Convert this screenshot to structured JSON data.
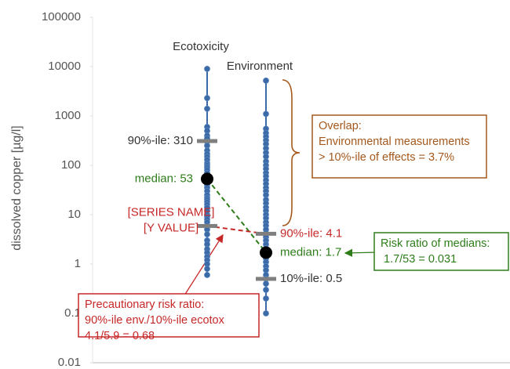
{
  "chart_data": {
    "type": "strip",
    "y_label": "dissolved copper  [µg/l]",
    "log_y": true,
    "ylim": [
      0.01,
      100000
    ],
    "yticks": [
      0.01,
      0.1,
      1,
      10,
      100,
      1000,
      10000,
      100000
    ],
    "series": [
      {
        "name": "Ecotoxicity",
        "color": "#3b6aa6",
        "values": [
          9000,
          2300,
          1400,
          600,
          500,
          400,
          350,
          300,
          250,
          200,
          170,
          150,
          130,
          110,
          100,
          90,
          80,
          70,
          60,
          55,
          50,
          45,
          40,
          35,
          30,
          25,
          22,
          20,
          18,
          16,
          14,
          12,
          10,
          9,
          8,
          7,
          6,
          5,
          4,
          3,
          2.5,
          2,
          1.7,
          1.4,
          1.2,
          1,
          0.8,
          0.6
        ],
        "percentiles": [
          {
            "value": 310,
            "label": "90%-ile: 310",
            "label_color": "#333333"
          },
          {
            "value": 53,
            "label": "median: 53",
            "label_color": "#2e7d1a"
          },
          {
            "value": 5.9,
            "label": [
              "[SERIES NAME]",
              "[Y VALUE]"
            ],
            "label_color": "#c62828"
          }
        ]
      },
      {
        "name": "Environment",
        "color": "#3b6aa6",
        "values": [
          5200,
          1100,
          550,
          450,
          380,
          320,
          270,
          220,
          180,
          150,
          120,
          100,
          85,
          70,
          60,
          50,
          42,
          35,
          30,
          25,
          20,
          17,
          14,
          12,
          10,
          8.5,
          7,
          6,
          5,
          4.2,
          3.5,
          3,
          2.5,
          2.1,
          1.8,
          1.5,
          1.3,
          1.1,
          0.9,
          0.75,
          0.6,
          0.5,
          0.4,
          0.3,
          0.2,
          0.1
        ],
        "percentiles": [
          {
            "value": 4.1,
            "label": "90%-ile: 4.1",
            "label_color": "#c62828"
          },
          {
            "value": 1.7,
            "label": "median: 1.7",
            "label_color": "#2e7d1a"
          },
          {
            "value": 0.5,
            "label": "10%-ile: 0.5",
            "label_color": "#333333"
          }
        ]
      }
    ],
    "annotations": [
      {
        "lines": [
          "Overlap:",
          "Environmental measurements",
          "> 10%-ile of effects = 3.7%"
        ],
        "color": "#a4581c"
      },
      {
        "lines": [
          "Risk ratio of medians:",
          "1.7/53 = 0.031"
        ],
        "color": "#2e7d1a"
      },
      {
        "lines": [
          "Precautionary risk ratio:",
          "90%-ile env./10%-ile ecotox",
          "4.1/5.9 = 0.68"
        ],
        "color": "#c62828"
      }
    ]
  }
}
